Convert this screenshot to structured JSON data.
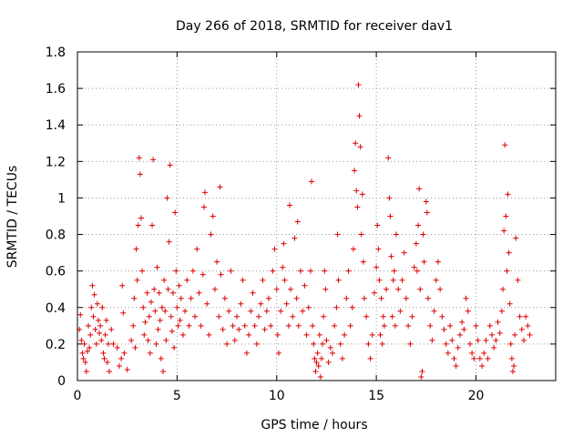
{
  "chart_data": {
    "type": "scatter",
    "title": "Day 266 of 2018, SRMTID for receiver dav1",
    "xlabel": "GPS time / hours",
    "ylabel": "SRMTID / TECUs",
    "xlim": [
      0,
      24
    ],
    "ylim": [
      0,
      1.8
    ],
    "x_ticks": [
      0,
      5,
      10,
      15,
      20
    ],
    "x_tick_labels": [
      "0",
      "5",
      "10",
      "15",
      "20"
    ],
    "y_ticks": [
      0,
      0.2,
      0.4,
      0.6,
      0.8,
      1.0,
      1.2,
      1.4,
      1.6,
      1.8
    ],
    "y_tick_labels": [
      "0",
      "0.2",
      "0.4",
      "0.6",
      "0.8",
      "1",
      "1.2",
      "1.4",
      "1.6",
      "1.8"
    ],
    "grid": true,
    "marker": "+",
    "colors": {
      "series": "#dd0000",
      "grid": "#999999",
      "axis": "#000000"
    },
    "series": [
      {
        "name": "dav1",
        "points": [
          [
            0.1,
            0.28
          ],
          [
            0.15,
            0.36
          ],
          [
            0.2,
            0.22
          ],
          [
            0.25,
            0.15
          ],
          [
            0.3,
            0.12
          ],
          [
            0.35,
            0.2
          ],
          [
            0.4,
            0.1
          ],
          [
            0.45,
            0.05
          ],
          [
            0.5,
            0.16
          ],
          [
            0.55,
            0.3
          ],
          [
            0.6,
            0.18
          ],
          [
            0.65,
            0.25
          ],
          [
            0.7,
            0.4
          ],
          [
            0.75,
            0.52
          ],
          [
            0.8,
            0.35
          ],
          [
            0.85,
            0.47
          ],
          [
            0.9,
            0.28
          ],
          [
            0.95,
            0.2
          ],
          [
            1.0,
            0.42
          ],
          [
            1.05,
            0.33
          ],
          [
            1.1,
            0.26
          ],
          [
            1.15,
            0.3
          ],
          [
            1.2,
            0.22
          ],
          [
            1.25,
            0.4
          ],
          [
            1.3,
            0.15
          ],
          [
            1.35,
            0.12
          ],
          [
            1.4,
            0.25
          ],
          [
            1.45,
            0.33
          ],
          [
            1.5,
            0.1
          ],
          [
            1.55,
            0.2
          ],
          [
            1.6,
            0.05
          ],
          [
            1.7,
            0.28
          ],
          [
            1.8,
            0.2
          ],
          [
            2.0,
            0.18
          ],
          [
            2.1,
            0.08
          ],
          [
            2.2,
            0.12
          ],
          [
            2.25,
            0.52
          ],
          [
            2.3,
            0.37
          ],
          [
            2.35,
            0.15
          ],
          [
            2.5,
            0.06
          ],
          [
            2.7,
            0.22
          ],
          [
            2.8,
            0.3
          ],
          [
            2.85,
            0.45
          ],
          [
            2.9,
            0.18
          ],
          [
            2.95,
            0.72
          ],
          [
            3.0,
            0.55
          ],
          [
            3.05,
            0.85
          ],
          [
            3.1,
            1.22
          ],
          [
            3.15,
            1.13
          ],
          [
            3.2,
            0.89
          ],
          [
            3.25,
            0.6
          ],
          [
            3.3,
            0.4
          ],
          [
            3.35,
            0.25
          ],
          [
            3.4,
            0.32
          ],
          [
            3.5,
            0.48
          ],
          [
            3.55,
            0.22
          ],
          [
            3.6,
            0.35
          ],
          [
            3.65,
            0.15
          ],
          [
            3.7,
            0.43
          ],
          [
            3.75,
            0.85
          ],
          [
            3.8,
            1.21
          ],
          [
            3.85,
            0.5
          ],
          [
            3.9,
            0.38
          ],
          [
            3.95,
            0.2
          ],
          [
            4.0,
            0.62
          ],
          [
            4.05,
            0.28
          ],
          [
            4.1,
            0.48
          ],
          [
            4.15,
            0.33
          ],
          [
            4.2,
            0.12
          ],
          [
            4.25,
            0.4
          ],
          [
            4.3,
            0.05
          ],
          [
            4.35,
            0.55
          ],
          [
            4.4,
            0.38
          ],
          [
            4.45,
            0.22
          ],
          [
            4.5,
            1.0
          ],
          [
            4.55,
            0.5
          ],
          [
            4.6,
            0.76
          ],
          [
            4.65,
            1.18
          ],
          [
            4.7,
            0.35
          ],
          [
            4.75,
            0.27
          ],
          [
            4.8,
            0.48
          ],
          [
            4.85,
            0.18
          ],
          [
            4.9,
            0.92
          ],
          [
            4.95,
            0.6
          ],
          [
            5.0,
            0.4
          ],
          [
            5.05,
            0.3
          ],
          [
            5.1,
            0.52
          ],
          [
            5.15,
            0.33
          ],
          [
            5.2,
            0.45
          ],
          [
            5.3,
            0.25
          ],
          [
            5.4,
            0.38
          ],
          [
            5.5,
            0.55
          ],
          [
            5.6,
            0.3
          ],
          [
            5.7,
            0.45
          ],
          [
            5.8,
            0.6
          ],
          [
            5.9,
            0.35
          ],
          [
            6.0,
            0.72
          ],
          [
            6.1,
            0.48
          ],
          [
            6.2,
            0.3
          ],
          [
            6.3,
            0.58
          ],
          [
            6.35,
            0.95
          ],
          [
            6.4,
            1.03
          ],
          [
            6.5,
            0.42
          ],
          [
            6.6,
            0.25
          ],
          [
            6.7,
            0.8
          ],
          [
            6.8,
            0.9
          ],
          [
            6.9,
            0.5
          ],
          [
            7.0,
            0.65
          ],
          [
            7.1,
            0.35
          ],
          [
            7.15,
            1.06
          ],
          [
            7.2,
            0.58
          ],
          [
            7.3,
            0.28
          ],
          [
            7.4,
            0.45
          ],
          [
            7.5,
            0.2
          ],
          [
            7.6,
            0.38
          ],
          [
            7.7,
            0.6
          ],
          [
            7.8,
            0.3
          ],
          [
            7.9,
            0.22
          ],
          [
            8.0,
            0.35
          ],
          [
            8.1,
            0.28
          ],
          [
            8.2,
            0.42
          ],
          [
            8.3,
            0.55
          ],
          [
            8.4,
            0.3
          ],
          [
            8.5,
            0.15
          ],
          [
            8.6,
            0.25
          ],
          [
            8.7,
            0.38
          ],
          [
            8.8,
            0.48
          ],
          [
            8.9,
            0.3
          ],
          [
            9.0,
            0.2
          ],
          [
            9.1,
            0.35
          ],
          [
            9.2,
            0.42
          ],
          [
            9.3,
            0.55
          ],
          [
            9.4,
            0.28
          ],
          [
            9.5,
            0.38
          ],
          [
            9.6,
            0.45
          ],
          [
            9.7,
            0.3
          ],
          [
            9.8,
            0.6
          ],
          [
            9.9,
            0.72
          ],
          [
            10.0,
            0.5
          ],
          [
            10.05,
            0.25
          ],
          [
            10.1,
            0.15
          ],
          [
            10.2,
            0.38
          ],
          [
            10.3,
            0.62
          ],
          [
            10.35,
            0.75
          ],
          [
            10.4,
            0.55
          ],
          [
            10.5,
            0.42
          ],
          [
            10.6,
            0.3
          ],
          [
            10.65,
            0.96
          ],
          [
            10.7,
            0.5
          ],
          [
            10.8,
            0.35
          ],
          [
            10.9,
            0.78
          ],
          [
            11.0,
            0.45
          ],
          [
            11.05,
            0.87
          ],
          [
            11.1,
            0.3
          ],
          [
            11.2,
            0.6
          ],
          [
            11.3,
            0.38
          ],
          [
            11.4,
            0.52
          ],
          [
            11.5,
            0.25
          ],
          [
            11.6,
            0.4
          ],
          [
            11.7,
            0.6
          ],
          [
            11.75,
            1.09
          ],
          [
            11.8,
            0.3
          ],
          [
            11.85,
            0.2
          ],
          [
            11.9,
            0.12
          ],
          [
            11.95,
            0.05
          ],
          [
            12.0,
            0.1
          ],
          [
            12.05,
            0.15
          ],
          [
            12.1,
            0.08
          ],
          [
            12.15,
            0.25
          ],
          [
            12.2,
            0.02
          ],
          [
            12.25,
            0.12
          ],
          [
            12.3,
            0.2
          ],
          [
            12.35,
            0.35
          ],
          [
            12.4,
            0.6
          ],
          [
            12.45,
            0.5
          ],
          [
            12.5,
            0.22
          ],
          [
            12.6,
            0.1
          ],
          [
            12.7,
            0.18
          ],
          [
            12.8,
            0.15
          ],
          [
            12.9,
            0.3
          ],
          [
            13.0,
            0.4
          ],
          [
            13.05,
            0.8
          ],
          [
            13.1,
            0.55
          ],
          [
            13.2,
            0.2
          ],
          [
            13.3,
            0.12
          ],
          [
            13.4,
            0.25
          ],
          [
            13.5,
            0.45
          ],
          [
            13.6,
            0.6
          ],
          [
            13.7,
            0.3
          ],
          [
            13.8,
            0.4
          ],
          [
            13.85,
            0.72
          ],
          [
            13.9,
            1.15
          ],
          [
            13.95,
            1.3
          ],
          [
            14.0,
            1.04
          ],
          [
            14.05,
            0.95
          ],
          [
            14.1,
            1.62
          ],
          [
            14.15,
            1.45
          ],
          [
            14.2,
            1.28
          ],
          [
            14.25,
            0.8
          ],
          [
            14.3,
            1.02
          ],
          [
            14.35,
            0.65
          ],
          [
            14.4,
            0.45
          ],
          [
            14.5,
            0.35
          ],
          [
            14.6,
            0.2
          ],
          [
            14.7,
            0.12
          ],
          [
            14.8,
            0.25
          ],
          [
            14.9,
            0.48
          ],
          [
            15.0,
            0.62
          ],
          [
            15.05,
            0.85
          ],
          [
            15.1,
            0.72
          ],
          [
            15.15,
            0.55
          ],
          [
            15.2,
            0.25
          ],
          [
            15.25,
            0.45
          ],
          [
            15.3,
            0.2
          ],
          [
            15.35,
            0.35
          ],
          [
            15.4,
            0.3
          ],
          [
            15.5,
            0.5
          ],
          [
            15.6,
            1.22
          ],
          [
            15.65,
            1.0
          ],
          [
            15.7,
            0.9
          ],
          [
            15.75,
            0.68
          ],
          [
            15.8,
            0.35
          ],
          [
            15.85,
            0.55
          ],
          [
            15.9,
            0.6
          ],
          [
            15.95,
            0.3
          ],
          [
            16.0,
            0.8
          ],
          [
            16.1,
            0.5
          ],
          [
            16.2,
            0.38
          ],
          [
            16.3,
            0.55
          ],
          [
            16.4,
            0.7
          ],
          [
            16.5,
            0.45
          ],
          [
            16.6,
            0.3
          ],
          [
            16.7,
            0.2
          ],
          [
            16.8,
            0.35
          ],
          [
            16.9,
            0.62
          ],
          [
            17.0,
            0.75
          ],
          [
            17.05,
            0.6
          ],
          [
            17.1,
            0.85
          ],
          [
            17.15,
            1.05
          ],
          [
            17.2,
            0.5
          ],
          [
            17.25,
            0.02
          ],
          [
            17.3,
            0.05
          ],
          [
            17.35,
            0.8
          ],
          [
            17.4,
            0.65
          ],
          [
            17.5,
            0.98
          ],
          [
            17.55,
            0.92
          ],
          [
            17.6,
            0.45
          ],
          [
            17.7,
            0.3
          ],
          [
            17.8,
            0.22
          ],
          [
            17.9,
            0.38
          ],
          [
            18.0,
            0.55
          ],
          [
            18.1,
            0.65
          ],
          [
            18.2,
            0.5
          ],
          [
            18.3,
            0.35
          ],
          [
            18.4,
            0.28
          ],
          [
            18.5,
            0.2
          ],
          [
            18.6,
            0.15
          ],
          [
            18.7,
            0.3
          ],
          [
            18.8,
            0.22
          ],
          [
            18.9,
            0.12
          ],
          [
            19.0,
            0.08
          ],
          [
            19.1,
            0.18
          ],
          [
            19.2,
            0.25
          ],
          [
            19.3,
            0.32
          ],
          [
            19.4,
            0.28
          ],
          [
            19.5,
            0.45
          ],
          [
            19.6,
            0.38
          ],
          [
            19.7,
            0.2
          ],
          [
            19.8,
            0.15
          ],
          [
            19.9,
            0.12
          ],
          [
            20.0,
            0.3
          ],
          [
            20.1,
            0.22
          ],
          [
            20.2,
            0.12
          ],
          [
            20.3,
            0.08
          ],
          [
            20.4,
            0.15
          ],
          [
            20.5,
            0.22
          ],
          [
            20.6,
            0.12
          ],
          [
            20.7,
            0.3
          ],
          [
            20.8,
            0.25
          ],
          [
            20.9,
            0.18
          ],
          [
            21.0,
            0.22
          ],
          [
            21.1,
            0.32
          ],
          [
            21.2,
            0.26
          ],
          [
            21.3,
            0.38
          ],
          [
            21.35,
            0.5
          ],
          [
            21.4,
            0.82
          ],
          [
            21.45,
            1.29
          ],
          [
            21.5,
            0.9
          ],
          [
            21.55,
            0.6
          ],
          [
            21.6,
            1.02
          ],
          [
            21.65,
            0.7
          ],
          [
            21.7,
            0.42
          ],
          [
            21.75,
            0.2
          ],
          [
            21.8,
            0.12
          ],
          [
            21.85,
            0.05
          ],
          [
            21.9,
            0.08
          ],
          [
            21.95,
            0.25
          ],
          [
            22.0,
            0.78
          ],
          [
            22.1,
            0.55
          ],
          [
            22.2,
            0.35
          ],
          [
            22.3,
            0.28
          ],
          [
            22.4,
            0.22
          ],
          [
            22.5,
            0.35
          ],
          [
            22.6,
            0.3
          ],
          [
            22.7,
            0.25
          ]
        ]
      }
    ]
  }
}
